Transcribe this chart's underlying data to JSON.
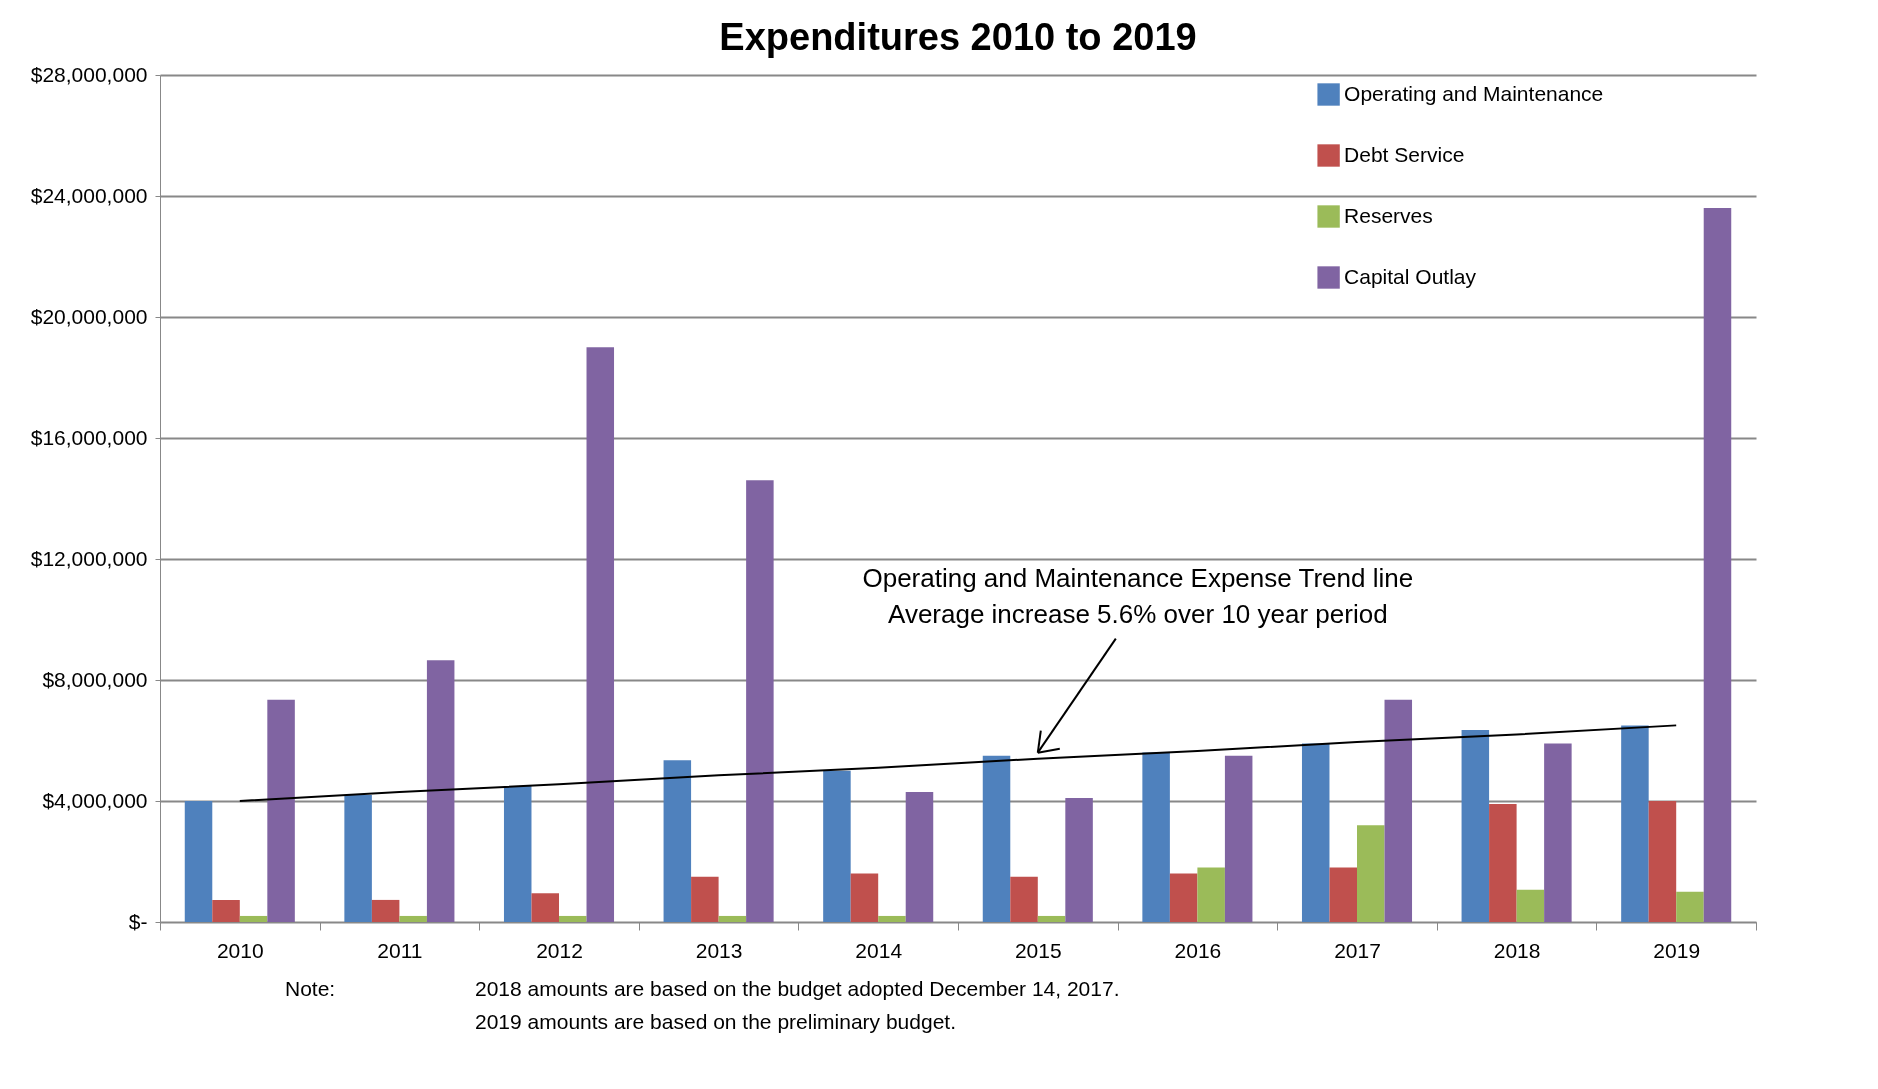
{
  "chart_data": {
    "type": "bar",
    "title": "Expenditures 2010 to 2019",
    "categories": [
      "2010",
      "2011",
      "2012",
      "2013",
      "2014",
      "2015",
      "2016",
      "2017",
      "2018",
      "2019"
    ],
    "series": [
      {
        "name": "Operating and Maintenance",
        "color": "#4f81bd",
        "values": [
          4000000,
          4200000,
          4500000,
          5350000,
          5000000,
          5500000,
          5600000,
          5900000,
          6350000,
          6500000
        ]
      },
      {
        "name": "Debt Service",
        "color": "#c0504d",
        "values": [
          730000,
          730000,
          950000,
          1500000,
          1600000,
          1500000,
          1600000,
          1800000,
          3900000,
          4000000
        ]
      },
      {
        "name": "Reserves",
        "color": "#9bbb59",
        "values": [
          200000,
          200000,
          200000,
          200000,
          200000,
          200000,
          1800000,
          3200000,
          1070000,
          1000000
        ]
      },
      {
        "name": "Capital Outlay",
        "color": "#8064a2",
        "values": [
          7350000,
          8650000,
          19000000,
          14600000,
          4300000,
          4100000,
          5500000,
          7350000,
          5900000,
          23600000
        ]
      },
      {
        "type": "line",
        "color": "#000000",
        "values": [
          4000000,
          4300000,
          4550000,
          4850000,
          5100000,
          5400000,
          5650000,
          5950000,
          6200000,
          6500000
        ]
      }
    ],
    "ylim": [
      0,
      28000000
    ],
    "yticks": [
      {
        "value": 0,
        "label": "$-"
      },
      {
        "value": 4000000,
        "label": "$4,000,000"
      },
      {
        "value": 8000000,
        "label": "$8,000,000"
      },
      {
        "value": 12000000,
        "label": "$12,000,000"
      },
      {
        "value": 16000000,
        "label": "$16,000,000"
      },
      {
        "value": 20000000,
        "label": "$20,000,000"
      },
      {
        "value": 24000000,
        "label": "$24,000,000"
      },
      {
        "value": 28000000,
        "label": "$28,000,000"
      }
    ],
    "grid": "y",
    "legend": "top right",
    "annotations": [
      "Operating and Maintenance Expense Trend line\nAverage increase 5.6% over 10 year period",
      "Note:",
      "2018 amounts are based on the budget adopted December 14, 2017.",
      "2019 amounts are based on the preliminary budget."
    ]
  }
}
